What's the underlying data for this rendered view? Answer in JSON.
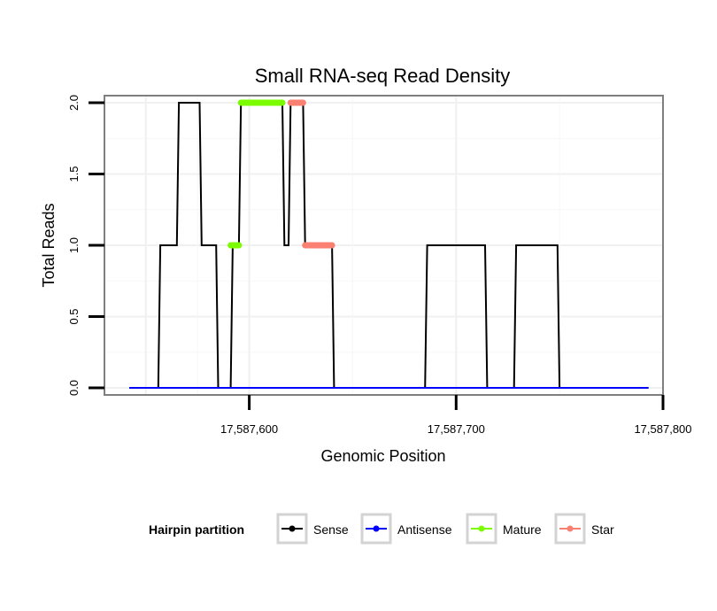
{
  "chart_data": {
    "type": "line",
    "title": "Small RNA-seq Read Density",
    "xlabel": "Genomic Position",
    "ylabel": "Total Reads",
    "xlim": [
      17587530,
      17587800
    ],
    "ylim": [
      -0.05,
      2.05
    ],
    "x_ticks": [
      17587600,
      17587700,
      17587800
    ],
    "x_tick_labels": [
      "17,587,600",
      "17,587,700",
      "17,587,800"
    ],
    "y_ticks": [
      0,
      0.5,
      1,
      1.5,
      2
    ],
    "y_tick_labels": [
      "0.0",
      "0.5",
      "1.0",
      "1.5",
      "2.0"
    ],
    "grid": true,
    "legend": {
      "title": "Hairpin partition",
      "position": "bottom",
      "entries": [
        {
          "name": "Sense",
          "color": "#000000"
        },
        {
          "name": "Antisense",
          "color": "#0000ff"
        },
        {
          "name": "Mature",
          "color": "#7cfc00"
        },
        {
          "name": "Star",
          "color": "#fa8072"
        }
      ]
    },
    "series": [
      {
        "name": "Sense",
        "color": "#000000",
        "x": [
          17587542,
          17587556,
          17587557,
          17587565,
          17587566,
          17587576,
          17587577,
          17587584,
          17587585,
          17587591,
          17587592,
          17587595,
          17587596,
          17587616,
          17587617,
          17587619,
          17587620,
          17587623,
          17587624,
          17587626,
          17587627,
          17587640,
          17587641,
          17587685,
          17587686,
          17587714,
          17587715,
          17587728,
          17587729,
          17587749,
          17587750,
          17587793
        ],
        "y": [
          0,
          0,
          1,
          1,
          2,
          2,
          1,
          1,
          0,
          0,
          1,
          1,
          2,
          2,
          1,
          1,
          2,
          2,
          2,
          2,
          1,
          1,
          0,
          0,
          1,
          1,
          0,
          0,
          1,
          1,
          0,
          0
        ]
      },
      {
        "name": "Antisense",
        "color": "#0000ff",
        "x": [
          17587542,
          17587793
        ],
        "y": [
          0,
          0
        ]
      },
      {
        "name": "Mature",
        "color": "#7cfc00",
        "segments": [
          {
            "x": [
              17587591,
              17587595
            ],
            "y": [
              1,
              1
            ]
          },
          {
            "x": [
              17587596,
              17587616
            ],
            "y": [
              2,
              2
            ]
          }
        ]
      },
      {
        "name": "Star",
        "color": "#fa8072",
        "segments": [
          {
            "x": [
              17587620,
              17587626
            ],
            "y": [
              2,
              2
            ]
          },
          {
            "x": [
              17587627,
              17587640
            ],
            "y": [
              1,
              1
            ]
          }
        ]
      }
    ]
  }
}
